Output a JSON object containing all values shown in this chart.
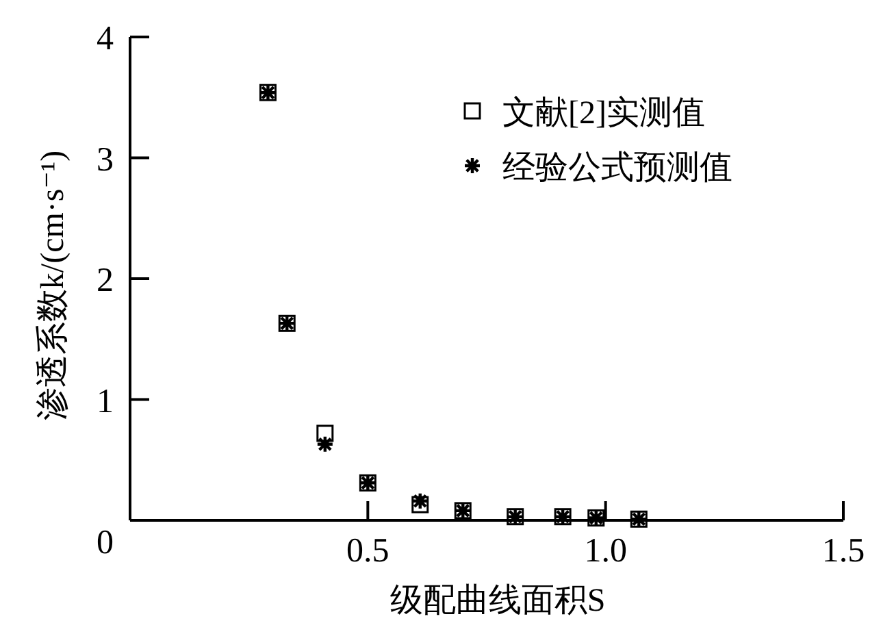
{
  "chart_data": {
    "type": "scatter",
    "xlabel": "级配曲线面积S",
    "ylabel": "渗透系数k/(cm·s⁻¹)",
    "xlim": [
      0,
      1.5
    ],
    "ylim": [
      0,
      4
    ],
    "xticks": [
      0.5,
      {
        "value": 1.0,
        "label": "1.0"
      },
      1.5
    ],
    "yticks": [
      0,
      1,
      2,
      3,
      4
    ],
    "grid": false,
    "legend": "top right",
    "x": [
      0.29,
      0.33,
      0.41,
      0.5,
      0.61,
      0.7,
      0.81,
      0.91,
      0.98,
      1.07
    ],
    "series": [
      {
        "name": "文献[2]实测值",
        "color": "#000000",
        "marker": "square",
        "values": [
          3.54,
          1.63,
          0.72,
          0.31,
          0.13,
          0.08,
          0.03,
          0.03,
          0.02,
          0.01
        ]
      },
      {
        "name": "经验公式预测值",
        "color": "#000000",
        "marker": "cross",
        "values": [
          3.54,
          1.63,
          0.63,
          0.31,
          0.16,
          0.08,
          0.03,
          0.03,
          0.02,
          0.01
        ]
      }
    ]
  }
}
